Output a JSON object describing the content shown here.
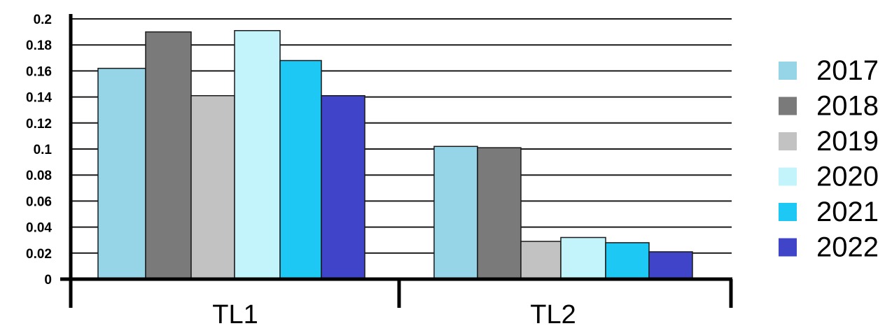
{
  "chart_data": {
    "type": "bar",
    "title": "",
    "xlabel": "",
    "ylabel": "",
    "categories": [
      "TL1",
      "TL2"
    ],
    "ylim": [
      0,
      0.2
    ],
    "yticks": [
      "0",
      "0.02",
      "0.04",
      "0.06",
      "0.08",
      "0.1",
      "0.12",
      "0.14",
      "0.16",
      "0.18",
      "0.2"
    ],
    "grid": true,
    "legend_position": "right",
    "series": [
      {
        "name": "2017",
        "color": "#96D5E8",
        "values": [
          0.162,
          0.102
        ]
      },
      {
        "name": "2018",
        "color": "#7A7A7A",
        "values": [
          0.19,
          0.101
        ]
      },
      {
        "name": "2019",
        "color": "#C2C2C2",
        "values": [
          0.141,
          0.029
        ]
      },
      {
        "name": "2020",
        "color": "#C4F4FB",
        "values": [
          0.191,
          0.032
        ]
      },
      {
        "name": "2021",
        "color": "#1DC8F4",
        "values": [
          0.168,
          0.028
        ]
      },
      {
        "name": "2022",
        "color": "#3F44C8",
        "values": [
          0.141,
          0.021
        ]
      }
    ]
  }
}
